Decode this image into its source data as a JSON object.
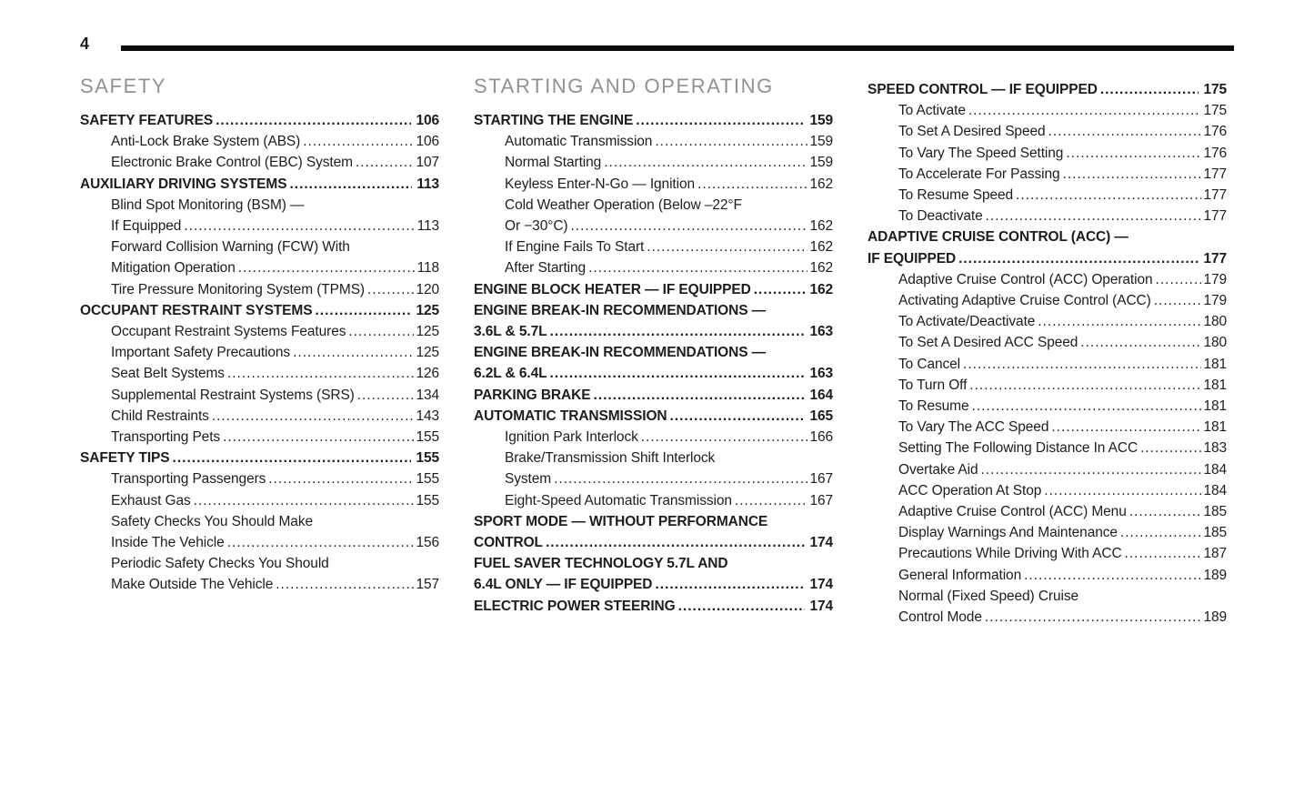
{
  "page_number": "4",
  "colors": {
    "text": "#1d1d1b",
    "heading_gray": "#8f9193",
    "rule": "#0b0b0b",
    "background": "#ffffff"
  },
  "columns": [
    {
      "heading": "SAFETY",
      "rows": [
        {
          "text": "SAFETY FEATURES",
          "page": "106",
          "bold": true,
          "indent": 0
        },
        {
          "text": "Anti-Lock Brake System (ABS)",
          "page": "106",
          "bold": false,
          "indent": 1
        },
        {
          "text": "Electronic Brake Control (EBC) System",
          "page": "107",
          "bold": false,
          "indent": 1
        },
        {
          "text": "AUXILIARY DRIVING SYSTEMS",
          "page": "113",
          "bold": true,
          "indent": 0
        },
        {
          "text": "Blind Spot Monitoring (BSM) —",
          "page": null,
          "bold": false,
          "indent": 1
        },
        {
          "text": "If Equipped",
          "page": "113",
          "bold": false,
          "indent": 1
        },
        {
          "text": "Forward Collision Warning (FCW) With",
          "page": null,
          "bold": false,
          "indent": 1
        },
        {
          "text": "Mitigation Operation",
          "page": "118",
          "bold": false,
          "indent": 1
        },
        {
          "text": "Tire Pressure Monitoring System (TPMS)",
          "page": "120",
          "bold": false,
          "indent": 1
        },
        {
          "text": "OCCUPANT RESTRAINT SYSTEMS",
          "page": "125",
          "bold": true,
          "indent": 0
        },
        {
          "text": "Occupant Restraint Systems Features",
          "page": "125",
          "bold": false,
          "indent": 1
        },
        {
          "text": "Important Safety Precautions",
          "page": "125",
          "bold": false,
          "indent": 1
        },
        {
          "text": "Seat Belt Systems",
          "page": "126",
          "bold": false,
          "indent": 1
        },
        {
          "text": "Supplemental Restraint Systems (SRS)",
          "page": "134",
          "bold": false,
          "indent": 1
        },
        {
          "text": "Child Restraints",
          "page": "143",
          "bold": false,
          "indent": 1
        },
        {
          "text": "Transporting Pets",
          "page": "155",
          "bold": false,
          "indent": 1
        },
        {
          "text": "SAFETY TIPS",
          "page": "155",
          "bold": true,
          "indent": 0
        },
        {
          "text": "Transporting Passengers",
          "page": "155",
          "bold": false,
          "indent": 1
        },
        {
          "text": "Exhaust Gas",
          "page": "155",
          "bold": false,
          "indent": 1
        },
        {
          "text": "Safety Checks You Should Make",
          "page": null,
          "bold": false,
          "indent": 1
        },
        {
          "text": "Inside The Vehicle",
          "page": "156",
          "bold": false,
          "indent": 1
        },
        {
          "text": "Periodic Safety Checks You Should",
          "page": null,
          "bold": false,
          "indent": 1
        },
        {
          "text": "Make Outside The Vehicle",
          "page": "157",
          "bold": false,
          "indent": 1
        }
      ]
    },
    {
      "heading": "STARTING AND OPERATING",
      "rows": [
        {
          "text": "STARTING THE ENGINE",
          "page": "159",
          "bold": true,
          "indent": 0
        },
        {
          "text": "Automatic Transmission",
          "page": "159",
          "bold": false,
          "indent": 1
        },
        {
          "text": "Normal Starting",
          "page": "159",
          "bold": false,
          "indent": 1
        },
        {
          "text": "Keyless Enter-N-Go — Ignition",
          "page": "162",
          "bold": false,
          "indent": 1
        },
        {
          "text": "Cold Weather Operation (Below –22°F",
          "page": null,
          "bold": false,
          "indent": 1
        },
        {
          "text": "Or −30°C)",
          "page": "162",
          "bold": false,
          "indent": 1
        },
        {
          "text": "If Engine Fails To Start",
          "page": "162",
          "bold": false,
          "indent": 1
        },
        {
          "text": "After Starting",
          "page": "162",
          "bold": false,
          "indent": 1
        },
        {
          "text": "ENGINE BLOCK HEATER — IF EQUIPPED",
          "page": "162",
          "bold": true,
          "indent": 0
        },
        {
          "text": "ENGINE BREAK-IN RECOMMENDATIONS —",
          "page": null,
          "bold": true,
          "indent": 0
        },
        {
          "text": "3.6L & 5.7L",
          "page": "163",
          "bold": true,
          "indent": 0
        },
        {
          "text": "ENGINE BREAK-IN RECOMMENDATIONS —",
          "page": null,
          "bold": true,
          "indent": 0
        },
        {
          "text": "6.2L & 6.4L",
          "page": "163",
          "bold": true,
          "indent": 0
        },
        {
          "text": "PARKING BRAKE",
          "page": "164",
          "bold": true,
          "indent": 0
        },
        {
          "text": "AUTOMATIC TRANSMISSION",
          "page": "165",
          "bold": true,
          "indent": 0
        },
        {
          "text": "Ignition Park Interlock",
          "page": "166",
          "bold": false,
          "indent": 1
        },
        {
          "text": "Brake/Transmission Shift Interlock",
          "page": null,
          "bold": false,
          "indent": 1
        },
        {
          "text": "System",
          "page": "167",
          "bold": false,
          "indent": 1
        },
        {
          "text": "Eight-Speed Automatic Transmission",
          "page": "167",
          "bold": false,
          "indent": 1
        },
        {
          "text": "SPORT MODE — WITHOUT PERFORMANCE",
          "page": null,
          "bold": true,
          "indent": 0
        },
        {
          "text": "CONTROL",
          "page": "174",
          "bold": true,
          "indent": 0
        },
        {
          "text": "FUEL SAVER TECHNOLOGY 5.7L AND",
          "page": null,
          "bold": true,
          "indent": 0
        },
        {
          "text": "6.4L ONLY — IF EQUIPPED",
          "page": "174",
          "bold": true,
          "indent": 0
        },
        {
          "text": "ELECTRIC POWER STEERING",
          "page": "174",
          "bold": true,
          "indent": 0
        }
      ]
    },
    {
      "heading": null,
      "rows": [
        {
          "text": "SPEED CONTROL — IF EQUIPPED",
          "page": "175",
          "bold": true,
          "indent": 0
        },
        {
          "text": "To Activate",
          "page": "175",
          "bold": false,
          "indent": 1
        },
        {
          "text": "To Set A Desired Speed",
          "page": "176",
          "bold": false,
          "indent": 1
        },
        {
          "text": "To Vary The Speed Setting",
          "page": "176",
          "bold": false,
          "indent": 1
        },
        {
          "text": "To Accelerate For Passing",
          "page": "177",
          "bold": false,
          "indent": 1
        },
        {
          "text": "To Resume Speed",
          "page": "177",
          "bold": false,
          "indent": 1
        },
        {
          "text": "To Deactivate",
          "page": "177",
          "bold": false,
          "indent": 1
        },
        {
          "text": "ADAPTIVE CRUISE CONTROL (ACC) —",
          "page": null,
          "bold": true,
          "indent": 0
        },
        {
          "text": "IF EQUIPPED",
          "page": "177",
          "bold": true,
          "indent": 0
        },
        {
          "text": "Adaptive Cruise Control (ACC) Operation",
          "page": "179",
          "bold": false,
          "indent": 1
        },
        {
          "text": "Activating Adaptive Cruise Control (ACC)",
          "page": "179",
          "bold": false,
          "indent": 1
        },
        {
          "text": "To Activate/Deactivate",
          "page": "180",
          "bold": false,
          "indent": 1
        },
        {
          "text": "To Set A Desired ACC Speed",
          "page": "180",
          "bold": false,
          "indent": 1
        },
        {
          "text": "To Cancel",
          "page": "181",
          "bold": false,
          "indent": 1
        },
        {
          "text": "To Turn Off",
          "page": "181",
          "bold": false,
          "indent": 1
        },
        {
          "text": "To Resume",
          "page": "181",
          "bold": false,
          "indent": 1
        },
        {
          "text": "To Vary The ACC Speed",
          "page": "181",
          "bold": false,
          "indent": 1
        },
        {
          "text": "Setting The Following Distance In ACC",
          "page": "183",
          "bold": false,
          "indent": 1
        },
        {
          "text": "Overtake Aid",
          "page": "184",
          "bold": false,
          "indent": 1
        },
        {
          "text": "ACC Operation At Stop",
          "page": "184",
          "bold": false,
          "indent": 1
        },
        {
          "text": "Adaptive Cruise Control (ACC) Menu",
          "page": "185",
          "bold": false,
          "indent": 1
        },
        {
          "text": "Display Warnings And Maintenance",
          "page": "185",
          "bold": false,
          "indent": 1
        },
        {
          "text": "Precautions While Driving With ACC",
          "page": "187",
          "bold": false,
          "indent": 1
        },
        {
          "text": "General Information",
          "page": "189",
          "bold": false,
          "indent": 1
        },
        {
          "text": "Normal (Fixed Speed) Cruise",
          "page": null,
          "bold": false,
          "indent": 1
        },
        {
          "text": "Control Mode",
          "page": "189",
          "bold": false,
          "indent": 1
        }
      ]
    }
  ]
}
